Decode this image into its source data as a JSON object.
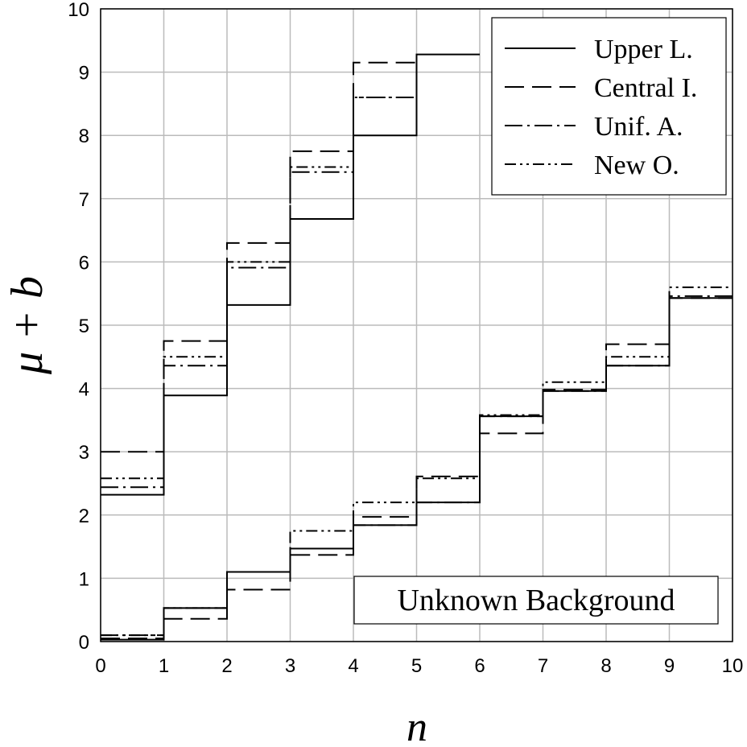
{
  "chart_data": {
    "type": "step",
    "xlabel": "n",
    "ylabel": "μ + b",
    "annotation": "Unknown Background",
    "xlim": [
      0,
      10
    ],
    "xticks": [
      0,
      1,
      2,
      3,
      4,
      5,
      6,
      7,
      8,
      9,
      10
    ],
    "ylim": [
      0,
      10
    ],
    "yticks": [
      0,
      1,
      2,
      3,
      4,
      5,
      6,
      7,
      8,
      9,
      10
    ],
    "grid": true,
    "legend": "upper right",
    "x": [
      0,
      1,
      2,
      3,
      4,
      5,
      6,
      7,
      8,
      9
    ],
    "series": [
      {
        "name": "Upper L.",
        "color": "#000000",
        "style": "solid",
        "upper": [
          2.32,
          3.89,
          5.32,
          6.68,
          8.0,
          9.28,
          null,
          null,
          null,
          null
        ],
        "lower": [
          0.03,
          0.53,
          1.1,
          1.47,
          1.84,
          2.2,
          3.56,
          3.96,
          4.36,
          5.43
        ]
      },
      {
        "name": "Central I.",
        "color": "#000000",
        "style": "dash",
        "upper": [
          3.0,
          4.75,
          6.3,
          7.75,
          9.15,
          null,
          null,
          null,
          null,
          null
        ],
        "lower": [
          0.05,
          0.36,
          0.82,
          1.37,
          1.97,
          2.61,
          3.29,
          3.98,
          4.7,
          5.43
        ]
      },
      {
        "name": "Unif. A.",
        "color": "#000000",
        "style": "dash-dot",
        "upper": [
          2.44,
          4.36,
          5.91,
          7.42,
          8.6,
          null,
          null,
          null,
          null,
          null
        ],
        "lower": [
          0.1,
          0.53,
          1.1,
          1.47,
          1.84,
          2.2,
          3.56,
          3.96,
          4.36,
          5.46
        ]
      },
      {
        "name": "New O.",
        "color": "#000000",
        "style": "dash-dot-dot",
        "upper": [
          2.58,
          4.5,
          6.0,
          7.5,
          8.6,
          null,
          null,
          null,
          null,
          null
        ],
        "lower": [
          0.1,
          0.53,
          1.1,
          1.75,
          2.2,
          2.58,
          3.58,
          4.1,
          4.5,
          5.6
        ]
      }
    ]
  }
}
